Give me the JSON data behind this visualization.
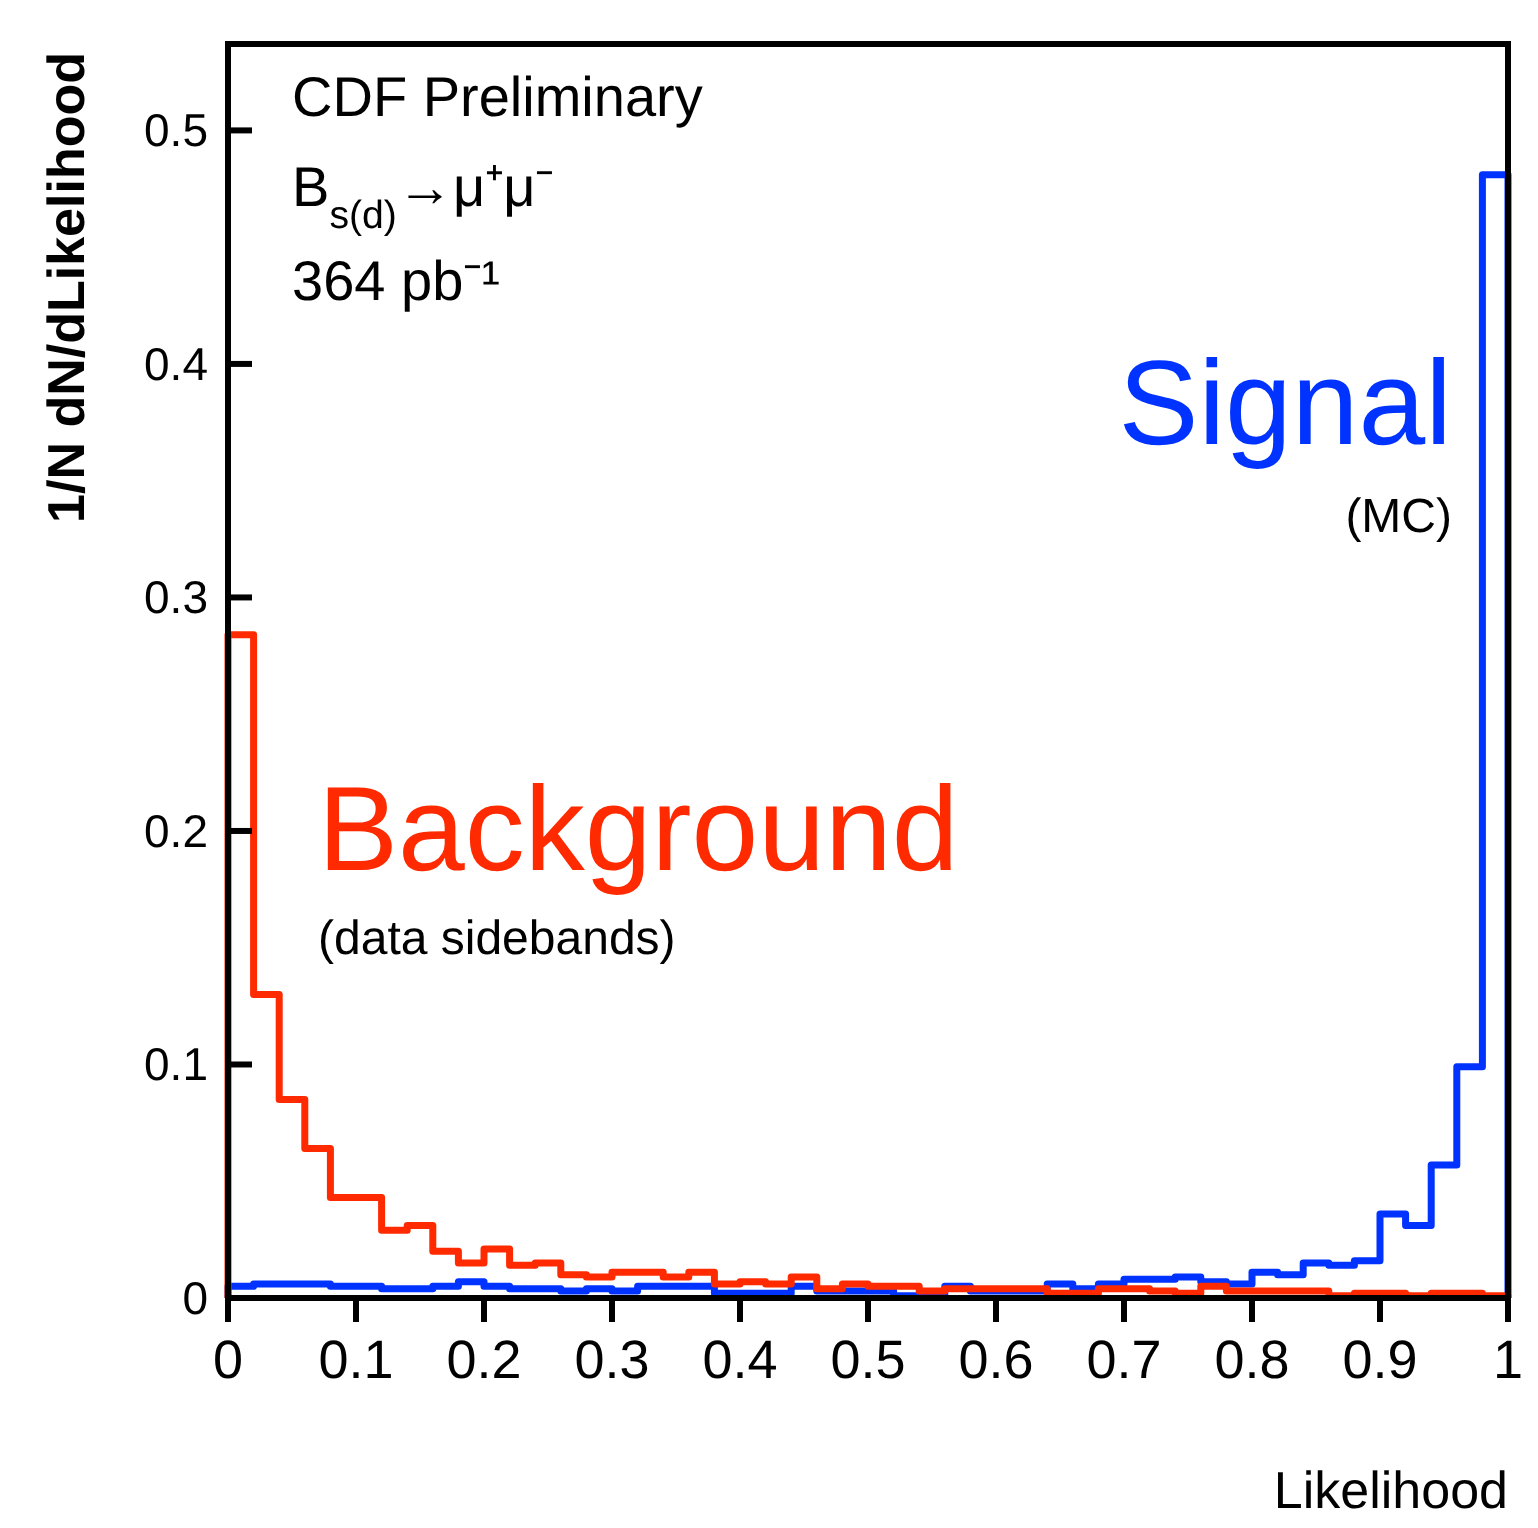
{
  "chart_data": {
    "type": "histogram",
    "xlabel": "Likelihood",
    "ylabel": "1/N dN/dLikelihood",
    "bins": [
      0,
      0.02,
      0.04,
      0.06,
      0.08,
      0.1,
      0.12,
      0.14,
      0.16,
      0.18,
      0.2,
      0.22,
      0.24,
      0.26,
      0.28,
      0.3,
      0.32,
      0.34,
      0.36,
      0.38,
      0.4,
      0.42,
      0.44,
      0.46,
      0.48,
      0.5,
      0.52,
      0.54,
      0.56,
      0.58,
      0.6,
      0.62,
      0.64,
      0.66,
      0.68,
      0.7,
      0.72,
      0.74,
      0.76,
      0.78,
      0.8,
      0.82,
      0.84,
      0.86,
      0.88,
      0.9,
      0.92,
      0.94,
      0.96,
      0.98,
      1
    ],
    "series": [
      {
        "name": "Signal",
        "color": "#0033ff",
        "values": [
          0.005,
          0.006,
          0.006,
          0.006,
          0.005,
          0.005,
          0.004,
          0.004,
          0.005,
          0.007,
          0.005,
          0.004,
          0.004,
          0.003,
          0.004,
          0.003,
          0.005,
          0.005,
          0.005,
          0.002,
          0.002,
          0.002,
          0.005,
          0.003,
          0.003,
          0.003,
          0.001,
          0.001,
          0.005,
          0.003,
          0.003,
          0.003,
          0.006,
          0.004,
          0.006,
          0.008,
          0.008,
          0.009,
          0.007,
          0.006,
          0.011,
          0.01,
          0.015,
          0.014,
          0.016,
          0.036,
          0.031,
          0.057,
          0.099,
          0.481
        ]
      },
      {
        "name": "Background",
        "color": "#ff2a00",
        "values": [
          0.284,
          0.13,
          0.085,
          0.064,
          0.043,
          0.043,
          0.029,
          0.031,
          0.02,
          0.015,
          0.021,
          0.014,
          0.015,
          0.01,
          0.009,
          0.011,
          0.011,
          0.009,
          0.011,
          0.006,
          0.007,
          0.006,
          0.009,
          0.004,
          0.006,
          0.005,
          0.005,
          0.003,
          0.004,
          0.004,
          0.004,
          0.004,
          0.002,
          0.002,
          0.004,
          0.004,
          0.003,
          0.002,
          0.005,
          0.003,
          0.003,
          0.003,
          0.003,
          0.001,
          0.002,
          0.002,
          0.001,
          0.002,
          0.002,
          0.001
        ]
      }
    ],
    "xlim": [
      0,
      1
    ],
    "ylim": [
      0,
      0.537
    ],
    "xticks": [
      0,
      0.1,
      0.2,
      0.3,
      0.4,
      0.5,
      0.6,
      0.7,
      0.8,
      0.9,
      1
    ],
    "yticks": [
      0,
      0.1,
      0.2,
      0.3,
      0.4,
      0.5
    ],
    "grid": false,
    "legend": false,
    "annotations": [
      "CDF Preliminary",
      "B$_{s(d)}$→μ⁺μ⁻",
      "364 pb⁻¹",
      "(MC)",
      "(data sidebands)"
    ]
  }
}
